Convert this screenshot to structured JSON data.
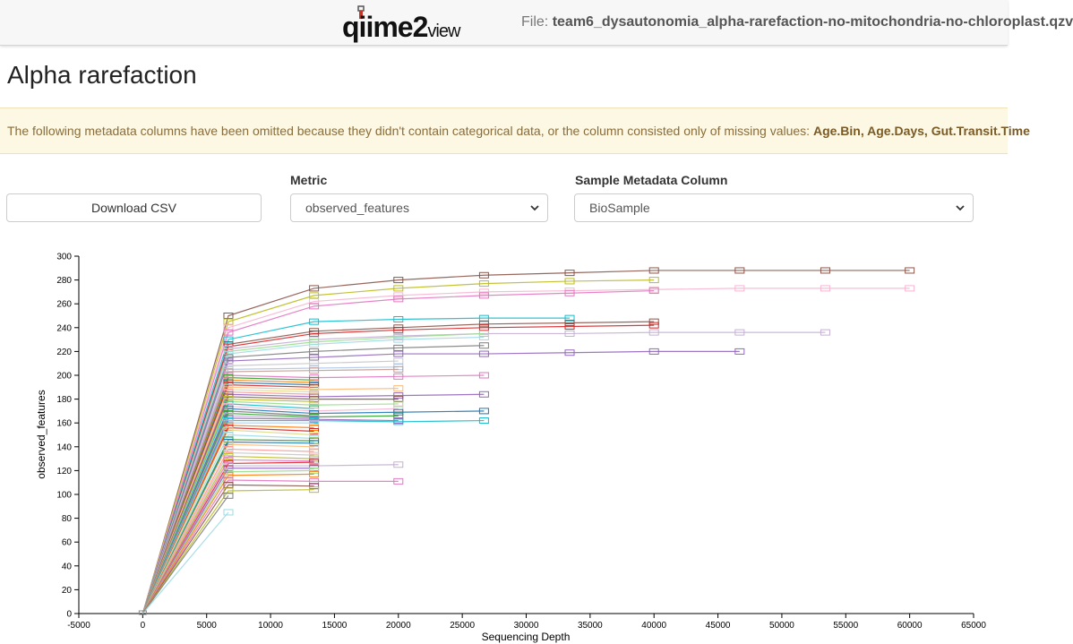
{
  "header": {
    "logo_text": "qiime2",
    "logo_suffix": "view",
    "file_label": "File:",
    "file_name": "team6_dysautonomia_alpha-rarefaction-no-mitochondria-no-chloroplast.qzv"
  },
  "page": {
    "title": "Alpha rarefaction"
  },
  "alert": {
    "message": "The following metadata columns have been omitted because they didn't contain categorical data, or the column consisted only of missing values:",
    "columns": "Age.Bin, Age.Days, Gut.Transit.Time"
  },
  "controls": {
    "download_label": "Download CSV",
    "metric_label": "Metric",
    "metric_value": "observed_features",
    "column_label": "Sample Metadata Column",
    "column_value": "BioSample"
  },
  "colors": {
    "alert_bg": "#fcf8e3",
    "alert_text": "#8a6d3b",
    "palette": [
      "#1f77b4",
      "#ff7f0e",
      "#2ca02c",
      "#d62728",
      "#9467bd",
      "#8c564b",
      "#e377c2",
      "#7f7f7f",
      "#bcbd22",
      "#17becf",
      "#aec7e8",
      "#ffbb78",
      "#98df8a",
      "#ff9896",
      "#c5b0d5",
      "#c49c94",
      "#f7b6d2",
      "#c7c7c7",
      "#dbdb8d",
      "#9edae5"
    ]
  },
  "chart_data": {
    "type": "line",
    "title": "",
    "xlabel": "Sequencing Depth",
    "ylabel": "observed_features",
    "xlim": [
      -5000,
      65000
    ],
    "ylim": [
      0,
      300
    ],
    "xticks": [
      -5000,
      0,
      5000,
      10000,
      15000,
      20000,
      25000,
      30000,
      35000,
      40000,
      45000,
      50000,
      55000,
      60000,
      65000
    ],
    "yticks": [
      0,
      20,
      40,
      60,
      80,
      100,
      120,
      140,
      160,
      180,
      200,
      220,
      240,
      260,
      280,
      300
    ],
    "depths": [
      0,
      6700,
      13400,
      20000,
      26700,
      33400,
      40000,
      46700,
      53400,
      60000
    ],
    "series": [
      {
        "color": "#8c564b",
        "values": [
          0,
          250,
          273,
          280,
          284,
          286,
          288,
          288,
          288,
          288
        ]
      },
      {
        "color": "#bcbd22",
        "values": [
          0,
          245,
          267,
          273,
          277,
          279,
          280
        ]
      },
      {
        "color": "#f7b6d2",
        "values": [
          0,
          240,
          262,
          267,
          270,
          271,
          272,
          273,
          273,
          273
        ]
      },
      {
        "color": "#e377c2",
        "values": [
          0,
          236,
          258,
          264,
          267,
          269,
          271
        ]
      },
      {
        "color": "#17becf",
        "values": [
          0,
          230,
          245,
          247,
          248,
          248
        ]
      },
      {
        "color": "#8c564b",
        "values": [
          0,
          226,
          237,
          240,
          243,
          244,
          245
        ]
      },
      {
        "color": "#d62728",
        "values": [
          0,
          224,
          235,
          238,
          240,
          241,
          242
        ]
      },
      {
        "color": "#c5b0d5",
        "values": [
          0,
          222,
          230,
          233,
          235,
          235,
          236,
          236,
          236
        ]
      },
      {
        "color": "#98df8a",
        "values": [
          0,
          220,
          228,
          232,
          235
        ]
      },
      {
        "color": "#9edae5",
        "values": [
          0,
          218,
          226,
          230,
          232
        ]
      },
      {
        "color": "#7f7f7f",
        "values": [
          0,
          215,
          220,
          223,
          225
        ]
      },
      {
        "color": "#9467bd",
        "values": [
          0,
          212,
          215,
          218,
          218,
          219,
          220,
          220
        ]
      },
      {
        "color": "#c7c7c7",
        "values": [
          0,
          208,
          210,
          212
        ]
      },
      {
        "color": "#aec7e8",
        "values": [
          0,
          205,
          206,
          207
        ]
      },
      {
        "color": "#c49c94",
        "values": [
          0,
          203,
          204,
          205
        ]
      },
      {
        "color": "#e377c2",
        "values": [
          0,
          200,
          198,
          199,
          200
        ]
      },
      {
        "color": "#2ca02c",
        "values": [
          0,
          198,
          196
        ]
      },
      {
        "color": "#ff7f0e",
        "values": [
          0,
          196,
          194
        ]
      },
      {
        "color": "#1f77b4",
        "values": [
          0,
          194,
          192
        ]
      },
      {
        "color": "#d62728",
        "values": [
          0,
          192,
          190
        ]
      },
      {
        "color": "#ffbb78",
        "values": [
          0,
          190,
          188,
          189
        ]
      },
      {
        "color": "#dbdb8d",
        "values": [
          0,
          188,
          186
        ]
      },
      {
        "color": "#ff9896",
        "values": [
          0,
          186,
          184
        ]
      },
      {
        "color": "#9467bd",
        "values": [
          0,
          184,
          182,
          183,
          184
        ]
      },
      {
        "color": "#8c564b",
        "values": [
          0,
          182,
          180,
          180
        ]
      },
      {
        "color": "#bcbd22",
        "values": [
          0,
          180,
          178
        ]
      },
      {
        "color": "#98df8a",
        "values": [
          0,
          178,
          175,
          176
        ]
      },
      {
        "color": "#17becf",
        "values": [
          0,
          176,
          172
        ]
      },
      {
        "color": "#f7b6d2",
        "values": [
          0,
          174,
          170,
          172
        ]
      },
      {
        "color": "#1f77b4",
        "values": [
          0,
          172,
          168,
          169,
          170
        ]
      },
      {
        "color": "#7f7f7f",
        "values": [
          0,
          170,
          166
        ]
      },
      {
        "color": "#2ca02c",
        "values": [
          0,
          168,
          165,
          166
        ]
      },
      {
        "color": "#c5b0d5",
        "values": [
          0,
          166,
          164
        ]
      },
      {
        "color": "#9467bd",
        "values": [
          0,
          164,
          163,
          162
        ]
      },
      {
        "color": "#17becf",
        "values": [
          0,
          162,
          162,
          161,
          162
        ]
      },
      {
        "color": "#aec7e8",
        "values": [
          0,
          160,
          160
        ]
      },
      {
        "color": "#ff7f0e",
        "values": [
          0,
          158,
          156
        ]
      },
      {
        "color": "#d62728",
        "values": [
          0,
          156,
          153
        ]
      },
      {
        "color": "#dbdb8d",
        "values": [
          0,
          154,
          150
        ]
      },
      {
        "color": "#9edae5",
        "values": [
          0,
          150,
          147
        ]
      },
      {
        "color": "#2ca02c",
        "values": [
          0,
          146,
          145
        ]
      },
      {
        "color": "#1f77b4",
        "values": [
          0,
          144,
          143
        ]
      },
      {
        "color": "#ffbb78",
        "values": [
          0,
          142,
          140
        ]
      },
      {
        "color": "#ff9896",
        "values": [
          0,
          138,
          136
        ]
      },
      {
        "color": "#c7c7c7",
        "values": [
          0,
          135,
          133
        ]
      },
      {
        "color": "#bcbd22",
        "values": [
          0,
          132,
          130
        ]
      },
      {
        "color": "#e377c2",
        "values": [
          0,
          129,
          128
        ]
      },
      {
        "color": "#d62728",
        "values": [
          0,
          126,
          127
        ]
      },
      {
        "color": "#c5b0d5",
        "values": [
          0,
          124,
          124,
          125
        ]
      },
      {
        "color": "#9467bd",
        "values": [
          0,
          122,
          122
        ]
      },
      {
        "color": "#98df8a",
        "values": [
          0,
          119,
          120
        ]
      },
      {
        "color": "#ff7f0e",
        "values": [
          0,
          116,
          117
        ]
      },
      {
        "color": "#e377c2",
        "values": [
          0,
          112,
          111,
          111
        ]
      },
      {
        "color": "#8c564b",
        "values": [
          0,
          108,
          107
        ]
      },
      {
        "color": "#bcbd22",
        "values": [
          0,
          103,
          104
        ]
      },
      {
        "color": "#7f7f7f",
        "values": [
          0,
          99
        ]
      },
      {
        "color": "#9edae5",
        "values": [
          0,
          85
        ]
      }
    ]
  }
}
